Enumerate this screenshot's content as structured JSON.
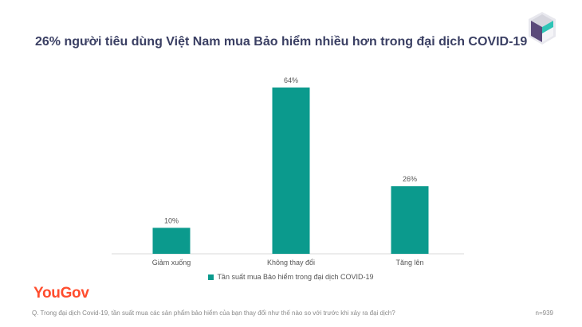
{
  "title": "26% người tiêu dùng Việt Nam mua Bảo hiểm nhiều hơn trong đại dịch COVID-19",
  "brand": "YouGov",
  "footnote": "Q. Trong đại dịch Covid-19, tần suất mua các sản phẩm bảo hiểm của bạn thay đổi như thế nào so với trước khi xảy ra đại dịch?",
  "sample_size": "n=939",
  "colors": {
    "bar": "#0b9a8d",
    "title": "#3a3f63",
    "brand": "#ff4d2e"
  },
  "chart_data": {
    "type": "bar",
    "categories": [
      "Giảm xuống",
      "Không thay đổi",
      "Tăng lên"
    ],
    "series": [
      {
        "name": "Tần suất mua Bảo hiểm trong đại dịch COVID-19",
        "values": [
          10,
          64,
          26
        ]
      }
    ],
    "data_labels": [
      "10%",
      "64%",
      "26%"
    ],
    "ylim": [
      0,
      64
    ],
    "grid": false,
    "legend_position": "bottom"
  }
}
